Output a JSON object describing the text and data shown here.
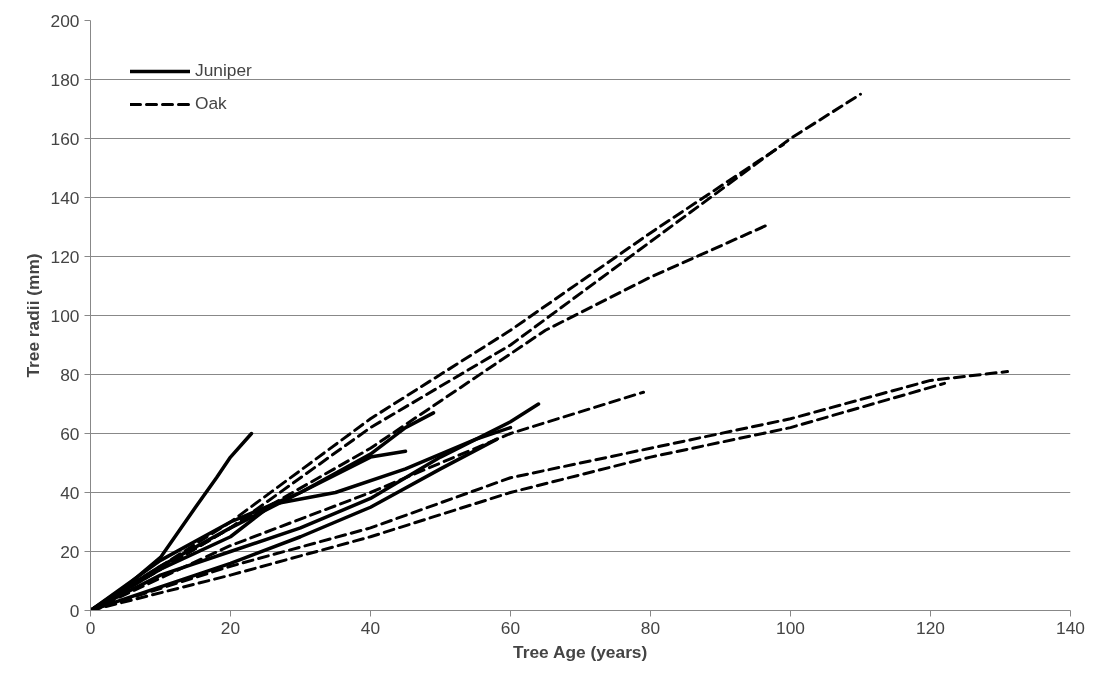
{
  "chart_data": {
    "type": "line",
    "xlabel": "Tree Age (years)",
    "ylabel": "Tree radii (mm)",
    "xlim": [
      0,
      140
    ],
    "xticks": [
      0,
      20,
      40,
      60,
      80,
      100,
      120,
      140
    ],
    "ylim": [
      0,
      200
    ],
    "yticks": [
      0,
      20,
      40,
      60,
      80,
      100,
      120,
      140,
      160,
      180,
      200
    ],
    "grid": "y",
    "legend": "top left",
    "marker": "none",
    "series": [
      {
        "name": "Juniper",
        "color": "#000000",
        "line_style": "solid",
        "x": [
          0,
          5,
          10,
          15,
          18,
          20,
          23
        ],
        "values": [
          0,
          8,
          18,
          35,
          45,
          52,
          60
        ]
      },
      {
        "color": "#000000",
        "line_style": "solid",
        "x": [
          0,
          10,
          20,
          30,
          40,
          45,
          49
        ],
        "values": [
          0,
          15,
          28,
          40,
          53,
          62,
          67
        ]
      },
      {
        "color": "#000000",
        "line_style": "solid",
        "x": [
          0,
          10,
          20,
          30,
          40,
          50,
          60,
          64
        ],
        "values": [
          0,
          12,
          20,
          28,
          38,
          52,
          64,
          70
        ]
      },
      {
        "color": "#000000",
        "line_style": "solid",
        "x": [
          0,
          10,
          20,
          30,
          40,
          45
        ],
        "values": [
          0,
          17,
          30,
          40,
          52,
          54
        ]
      },
      {
        "color": "#000000",
        "line_style": "solid",
        "x": [
          0,
          10,
          20,
          26,
          35,
          45,
          55,
          60
        ],
        "values": [
          0,
          14,
          25,
          36,
          40,
          48,
          58,
          62
        ]
      },
      {
        "color": "#000000",
        "line_style": "solid",
        "x": [
          0,
          10,
          20,
          30,
          40,
          50,
          58
        ],
        "values": [
          0,
          8,
          16,
          25,
          35,
          48,
          58
        ]
      },
      {
        "name": "Oak",
        "color": "#000000",
        "line_style": "dashed",
        "x": [
          0,
          20,
          40,
          60,
          80,
          100,
          110
        ],
        "values": [
          0,
          28,
          62,
          90,
          125,
          160,
          175
        ]
      },
      {
        "color": "#000000",
        "line_style": "dashed",
        "x": [
          0,
          20,
          40,
          60,
          80,
          99
        ],
        "values": [
          0,
          30,
          65,
          95,
          128,
          158
        ]
      },
      {
        "color": "#000000",
        "line_style": "dashed",
        "x": [
          0,
          20,
          40,
          65,
          80,
          97
        ],
        "values": [
          0,
          28,
          55,
          95,
          113,
          131
        ]
      },
      {
        "color": "#000000",
        "line_style": "dashed",
        "x": [
          0,
          20,
          40,
          60,
          79
        ],
        "values": [
          0,
          22,
          40,
          60,
          74
        ]
      },
      {
        "color": "#000000",
        "line_style": "dashed",
        "x": [
          0,
          20,
          40,
          60,
          80,
          100,
          120,
          131
        ],
        "values": [
          0,
          15,
          28,
          45,
          55,
          65,
          78,
          81
        ]
      },
      {
        "color": "#000000",
        "line_style": "dashed",
        "x": [
          0,
          20,
          40,
          60,
          80,
          100,
          122
        ],
        "values": [
          0,
          12,
          25,
          40,
          52,
          62,
          77
        ]
      }
    ]
  }
}
